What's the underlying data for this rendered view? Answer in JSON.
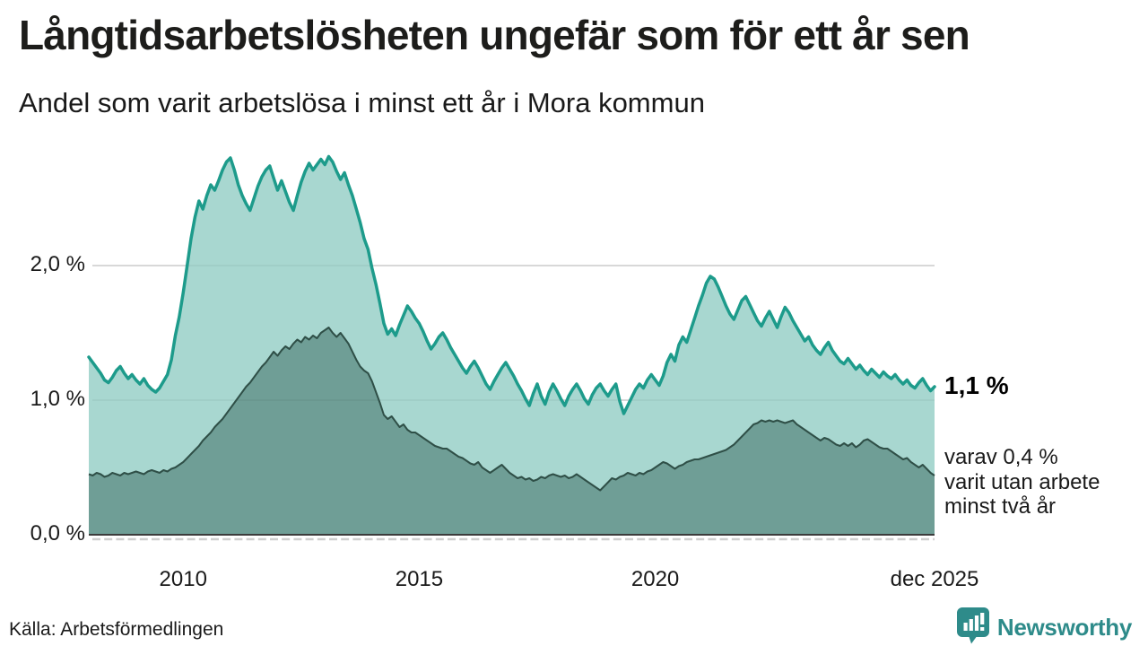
{
  "header": {
    "title": "Långtidsarbetslösheten ungefär som för ett år sen",
    "subtitle": "Andel som varit arbetslösa i minst ett år i Mora kommun"
  },
  "annotations": {
    "latest_value": "1,1 %",
    "secondary": "varav 0,4 %\nvarit utan arbete\nminst två år"
  },
  "footer": {
    "source": "Källa: Arbetsförmedlingen",
    "brand": "Newsworthy"
  },
  "colors": {
    "line_one_year": "#1d9b8b",
    "fill_one_year": "#a8d7d0",
    "line_two_years": "#2f4f47",
    "fill_two_years": "#6f9e96",
    "gridline": "#d8d8d8",
    "axis": "#3c3c3c",
    "minor_ticks": "#cfcfcf",
    "brand_teal": "#2e8b8a",
    "title_text": "#1d1d1b"
  },
  "chart_data": {
    "type": "area",
    "title": "Långtidsarbetslösheten ungefär som för ett år sen",
    "subtitle": "Andel som varit arbetslösa i minst ett år i Mora kommun",
    "unit": "%",
    "x_start": "jan 2008",
    "x_end": "dec 2025",
    "points_per_year": 12,
    "ylim": [
      0,
      2.95
    ],
    "grid_values": [
      1.0,
      2.0
    ],
    "y_ticks": [
      {
        "label": "0,0 %",
        "value": 0.0
      },
      {
        "label": "1,0 %",
        "value": 1.0
      },
      {
        "label": "2,0 %",
        "value": 2.0
      }
    ],
    "x_ticks": [
      {
        "label": "2010",
        "month": 24
      },
      {
        "label": "2015",
        "month": 84
      },
      {
        "label": "2020",
        "month": 144
      },
      {
        "label": "dec 2025",
        "month": 215
      }
    ],
    "series": [
      {
        "name": "minst ett år",
        "latest_label": "1,1 %",
        "values": [
          1.32,
          1.28,
          1.24,
          1.2,
          1.15,
          1.13,
          1.17,
          1.22,
          1.25,
          1.2,
          1.16,
          1.19,
          1.15,
          1.12,
          1.16,
          1.11,
          1.08,
          1.06,
          1.09,
          1.14,
          1.19,
          1.3,
          1.48,
          1.62,
          1.8,
          2.0,
          2.2,
          2.36,
          2.48,
          2.42,
          2.52,
          2.6,
          2.56,
          2.63,
          2.71,
          2.77,
          2.8,
          2.71,
          2.6,
          2.52,
          2.46,
          2.41,
          2.5,
          2.59,
          2.66,
          2.71,
          2.74,
          2.65,
          2.56,
          2.63,
          2.55,
          2.47,
          2.41,
          2.52,
          2.62,
          2.7,
          2.76,
          2.71,
          2.75,
          2.79,
          2.75,
          2.81,
          2.77,
          2.7,
          2.64,
          2.69,
          2.6,
          2.52,
          2.42,
          2.32,
          2.2,
          2.12,
          1.98,
          1.86,
          1.72,
          1.57,
          1.49,
          1.53,
          1.48,
          1.56,
          1.63,
          1.7,
          1.66,
          1.61,
          1.57,
          1.51,
          1.44,
          1.38,
          1.42,
          1.47,
          1.5,
          1.45,
          1.39,
          1.34,
          1.29,
          1.24,
          1.2,
          1.25,
          1.29,
          1.24,
          1.18,
          1.12,
          1.08,
          1.14,
          1.19,
          1.24,
          1.28,
          1.23,
          1.18,
          1.12,
          1.07,
          1.01,
          0.96,
          1.05,
          1.12,
          1.03,
          0.97,
          1.06,
          1.12,
          1.07,
          1.01,
          0.96,
          1.03,
          1.08,
          1.12,
          1.07,
          1.01,
          0.97,
          1.04,
          1.09,
          1.12,
          1.07,
          1.03,
          1.08,
          1.12,
          0.99,
          0.9,
          0.96,
          1.02,
          1.08,
          1.12,
          1.09,
          1.15,
          1.19,
          1.15,
          1.11,
          1.18,
          1.28,
          1.34,
          1.29,
          1.41,
          1.47,
          1.43,
          1.52,
          1.61,
          1.7,
          1.78,
          1.87,
          1.92,
          1.9,
          1.84,
          1.77,
          1.7,
          1.64,
          1.6,
          1.67,
          1.74,
          1.77,
          1.71,
          1.65,
          1.59,
          1.55,
          1.61,
          1.66,
          1.6,
          1.54,
          1.62,
          1.69,
          1.65,
          1.59,
          1.54,
          1.49,
          1.44,
          1.47,
          1.41,
          1.37,
          1.34,
          1.39,
          1.43,
          1.37,
          1.33,
          1.29,
          1.27,
          1.31,
          1.27,
          1.23,
          1.26,
          1.22,
          1.19,
          1.23,
          1.2,
          1.17,
          1.21,
          1.18,
          1.16,
          1.19,
          1.15,
          1.12,
          1.15,
          1.11,
          1.09,
          1.13,
          1.16,
          1.11,
          1.07,
          1.1
        ]
      },
      {
        "name": "minst två år",
        "latest_label": "0,4 %",
        "values": [
          0.45,
          0.44,
          0.46,
          0.45,
          0.43,
          0.44,
          0.46,
          0.45,
          0.44,
          0.46,
          0.45,
          0.46,
          0.47,
          0.46,
          0.45,
          0.47,
          0.48,
          0.47,
          0.46,
          0.48,
          0.47,
          0.49,
          0.5,
          0.52,
          0.54,
          0.57,
          0.6,
          0.63,
          0.66,
          0.7,
          0.73,
          0.76,
          0.8,
          0.83,
          0.86,
          0.9,
          0.94,
          0.98,
          1.02,
          1.06,
          1.1,
          1.13,
          1.17,
          1.21,
          1.25,
          1.28,
          1.32,
          1.36,
          1.33,
          1.37,
          1.4,
          1.38,
          1.42,
          1.45,
          1.43,
          1.47,
          1.45,
          1.48,
          1.46,
          1.5,
          1.52,
          1.54,
          1.5,
          1.47,
          1.5,
          1.46,
          1.42,
          1.36,
          1.3,
          1.25,
          1.22,
          1.2,
          1.14,
          1.06,
          0.98,
          0.89,
          0.86,
          0.88,
          0.84,
          0.8,
          0.82,
          0.78,
          0.76,
          0.76,
          0.74,
          0.72,
          0.7,
          0.68,
          0.66,
          0.65,
          0.64,
          0.64,
          0.62,
          0.6,
          0.58,
          0.57,
          0.55,
          0.53,
          0.52,
          0.54,
          0.5,
          0.48,
          0.46,
          0.48,
          0.5,
          0.52,
          0.49,
          0.46,
          0.44,
          0.42,
          0.43,
          0.41,
          0.42,
          0.4,
          0.41,
          0.43,
          0.42,
          0.44,
          0.45,
          0.44,
          0.43,
          0.44,
          0.42,
          0.43,
          0.45,
          0.43,
          0.41,
          0.39,
          0.37,
          0.35,
          0.33,
          0.36,
          0.39,
          0.42,
          0.41,
          0.43,
          0.44,
          0.46,
          0.45,
          0.44,
          0.46,
          0.45,
          0.47,
          0.48,
          0.5,
          0.52,
          0.54,
          0.53,
          0.51,
          0.49,
          0.51,
          0.52,
          0.54,
          0.55,
          0.56,
          0.56,
          0.57,
          0.58,
          0.59,
          0.6,
          0.61,
          0.62,
          0.63,
          0.65,
          0.67,
          0.7,
          0.73,
          0.76,
          0.79,
          0.82,
          0.83,
          0.85,
          0.84,
          0.85,
          0.84,
          0.85,
          0.84,
          0.83,
          0.84,
          0.85,
          0.82,
          0.8,
          0.78,
          0.76,
          0.74,
          0.72,
          0.7,
          0.72,
          0.71,
          0.69,
          0.67,
          0.66,
          0.68,
          0.66,
          0.68,
          0.65,
          0.67,
          0.7,
          0.71,
          0.69,
          0.67,
          0.65,
          0.64,
          0.64,
          0.62,
          0.6,
          0.58,
          0.56,
          0.57,
          0.54,
          0.52,
          0.5,
          0.52,
          0.49,
          0.46,
          0.44
        ]
      }
    ]
  }
}
